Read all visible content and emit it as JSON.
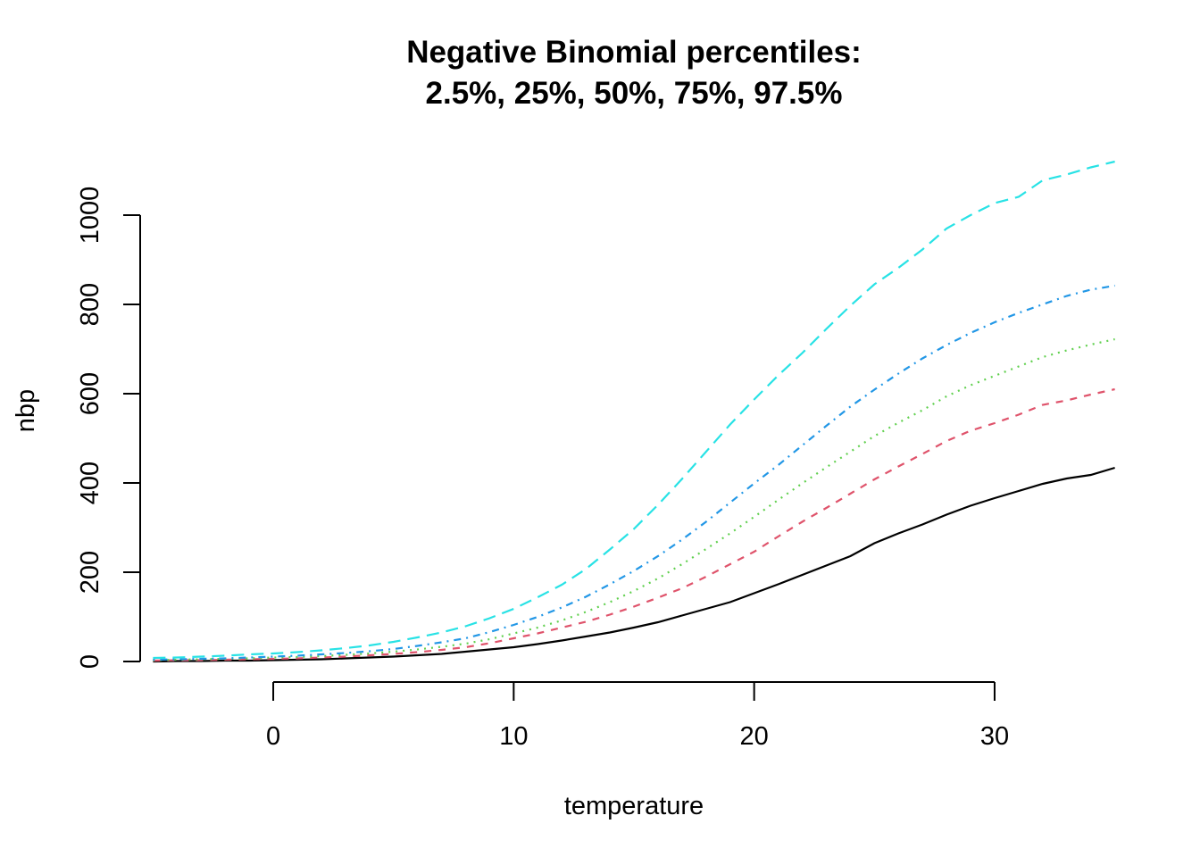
{
  "chart_data": {
    "type": "line",
    "title": [
      "Negative Binomial percentiles:",
      "2.5%, 25%, 50%, 75%, 97.5%"
    ],
    "xlabel": "temperature",
    "ylabel": "nbp",
    "xlim": [
      -5.2,
      35.2
    ],
    "ylim": [
      -22,
      1120
    ],
    "xticks": [
      0,
      10,
      20,
      30
    ],
    "xtick_labels": [
      "0",
      "10",
      "20",
      "30"
    ],
    "yticks": [
      0,
      200,
      400,
      600,
      800,
      1000
    ],
    "ytick_labels": [
      "0",
      "200",
      "400",
      "600",
      "800",
      "1000"
    ],
    "grid": false,
    "legend": "none",
    "x": [
      -5,
      -4,
      -3,
      -2,
      -1,
      0,
      1,
      2,
      3,
      4,
      5,
      6,
      7,
      8,
      9,
      10,
      11,
      12,
      13,
      14,
      15,
      16,
      17,
      18,
      19,
      20,
      21,
      22,
      23,
      24,
      25,
      26,
      27,
      28,
      29,
      30,
      31,
      32,
      33,
      34,
      35
    ],
    "series": [
      {
        "color": "#000000",
        "dash": "solid",
        "values": [
          0,
          1,
          1,
          2,
          2,
          3,
          4,
          5,
          7,
          9,
          11,
          14,
          17,
          22,
          27,
          32,
          39,
          47,
          56,
          65,
          76,
          88,
          103,
          118,
          133,
          153,
          173,
          194,
          215,
          236,
          265,
          287,
          307,
          329,
          349,
          366,
          382,
          398,
          410,
          418,
          434
        ]
      },
      {
        "color": "#DF536B",
        "dash": "dashed",
        "values": [
          2,
          3,
          3,
          4,
          5,
          6,
          7,
          9,
          11,
          14,
          17,
          21,
          26,
          32,
          41,
          52,
          63,
          76,
          89,
          105,
          123,
          143,
          164,
          190,
          218,
          246,
          280,
          313,
          344,
          376,
          408,
          437,
          465,
          494,
          517,
          534,
          553,
          575,
          585,
          598,
          610
        ]
      },
      {
        "color": "#61D04F",
        "dash": "dotted",
        "values": [
          3,
          4,
          5,
          6,
          7,
          9,
          10,
          12,
          15,
          18,
          22,
          27,
          33,
          40,
          50,
          63,
          76,
          92,
          111,
          133,
          158,
          186,
          218,
          252,
          287,
          324,
          362,
          399,
          435,
          470,
          505,
          535,
          563,
          594,
          619,
          640,
          661,
          682,
          697,
          710,
          722
        ]
      },
      {
        "color": "#2297E6",
        "dash": "dotdash",
        "values": [
          4,
          5,
          6,
          7,
          9,
          11,
          13,
          16,
          19,
          23,
          28,
          35,
          43,
          52,
          66,
          82,
          100,
          121,
          145,
          173,
          203,
          236,
          273,
          313,
          356,
          399,
          440,
          484,
          528,
          571,
          609,
          645,
          679,
          709,
          736,
          760,
          781,
          800,
          819,
          833,
          842
        ]
      },
      {
        "color": "#28E2E5",
        "dash": "longdash",
        "values": [
          8,
          9,
          11,
          13,
          16,
          18,
          21,
          25,
          30,
          36,
          44,
          54,
          65,
          79,
          97,
          118,
          144,
          172,
          207,
          251,
          297,
          351,
          409,
          470,
          531,
          587,
          641,
          691,
          745,
          797,
          845,
          882,
          923,
          970,
          1000,
          1027,
          1041,
          1078,
          1091,
          1107,
          1120
        ]
      }
    ]
  }
}
